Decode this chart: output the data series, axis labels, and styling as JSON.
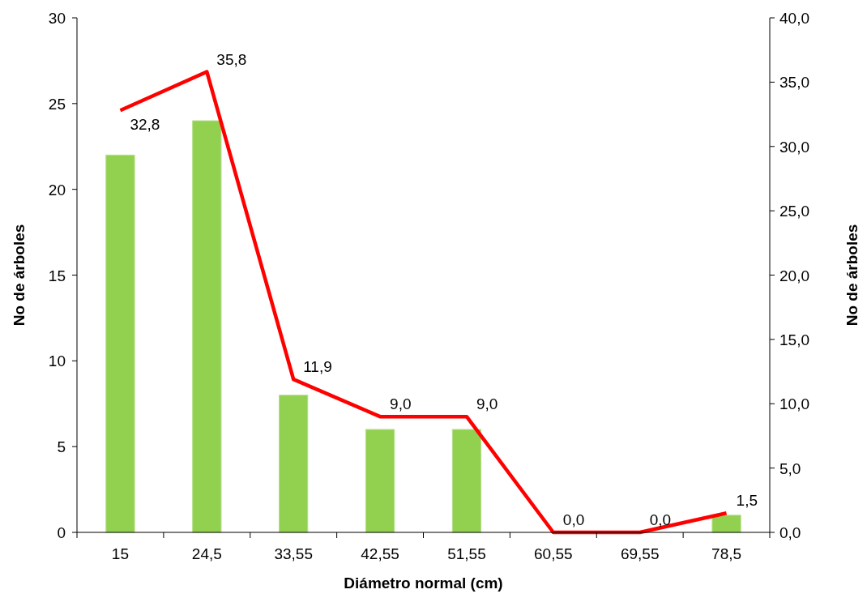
{
  "chart_data": {
    "type": "bar",
    "xlabel": "Diámetro normal (cm)",
    "ylabel": "No de árboles",
    "y2label": "No de árboles",
    "categories": [
      "15",
      "24,5",
      "33,55",
      "42,55",
      "51,55",
      "60,55",
      "69,55",
      "78,5"
    ],
    "series": [
      {
        "color": "#92d050",
        "values": [
          22,
          24,
          8,
          6,
          6,
          0,
          0,
          1
        ]
      },
      {
        "type": "line",
        "axis": "y2",
        "color": "#ff0000",
        "values": [
          32.8,
          35.8,
          11.9,
          9.0,
          9.0,
          0.0,
          0.0,
          1.5
        ],
        "value_labels": [
          "32,8",
          "35,8",
          "11,9",
          "9,0",
          "9,0",
          "0,0",
          "0,0",
          "1,5"
        ]
      }
    ],
    "ylim": [
      0,
      30
    ],
    "yticks": [
      0,
      5,
      10,
      15,
      20,
      25,
      30
    ],
    "y2lim": [
      0,
      40
    ],
    "y2ticks": [
      {
        "value": 0,
        "label": "0,0"
      },
      {
        "value": 5,
        "label": "5,0"
      },
      {
        "value": 10,
        "label": "10,0"
      },
      {
        "value": 15,
        "label": "15,0"
      },
      {
        "value": 20,
        "label": "20,0"
      },
      {
        "value": 25,
        "label": "25,0"
      },
      {
        "value": 30,
        "label": "30,0"
      },
      {
        "value": 35,
        "label": "35,0"
      },
      {
        "value": 40,
        "label": "40,0"
      }
    ]
  }
}
